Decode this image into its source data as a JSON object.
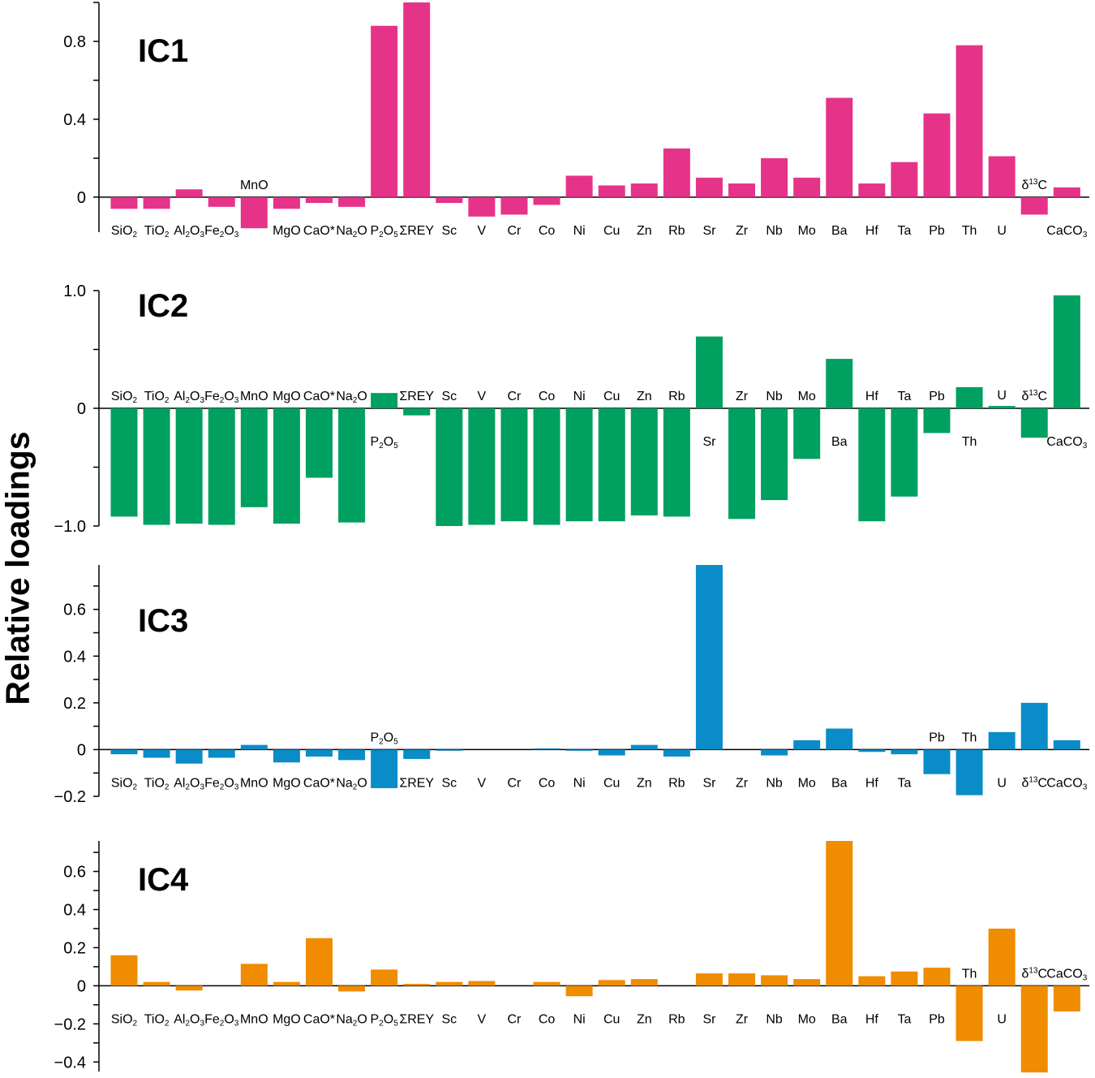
{
  "figure": {
    "ylabel": "Relative loadings"
  },
  "chart_data": [
    {
      "type": "bar",
      "title": "IC1",
      "color": "#e6338a",
      "categories": [
        "SiO2",
        "TiO2",
        "Al2O3",
        "Fe2O3",
        "MnO",
        "MgO",
        "CaO*",
        "Na2O",
        "P2O5",
        "ΣREY",
        "Sc",
        "V",
        "Cr",
        "Co",
        "Ni",
        "Cu",
        "Zn",
        "Rb",
        "Sr",
        "Zr",
        "Nb",
        "Mo",
        "Ba",
        "Hf",
        "Ta",
        "Pb",
        "Th",
        "U",
        "δ13C",
        "CaCO3"
      ],
      "values": [
        -0.06,
        -0.06,
        0.04,
        -0.05,
        -0.16,
        -0.06,
        -0.03,
        -0.05,
        0.88,
        1.0,
        -0.03,
        -0.1,
        -0.09,
        -0.04,
        0.11,
        0.06,
        0.07,
        0.25,
        0.1,
        0.07,
        0.2,
        0.1,
        0.51,
        0.07,
        0.18,
        0.43,
        0.78,
        0.21,
        -0.09,
        0.05
      ],
      "ylim": [
        -0.18,
        1.0
      ],
      "yticks": [
        "0",
        "0.4",
        "0.8"
      ],
      "label_positions": [
        "below",
        "below",
        "below",
        "below",
        "above",
        "below",
        "below",
        "below",
        "below",
        "below",
        "below",
        "below",
        "below",
        "below",
        "below",
        "below",
        "below",
        "below",
        "below",
        "below",
        "below",
        "below",
        "below",
        "below",
        "below",
        "below",
        "below",
        "below",
        "above",
        "below"
      ]
    },
    {
      "type": "bar",
      "title": "IC2",
      "color": "#00a060",
      "categories": [
        "SiO2",
        "TiO2",
        "Al2O3",
        "Fe2O3",
        "MnO",
        "MgO",
        "CaO*",
        "Na2O",
        "P2O5",
        "ΣREY",
        "Sc",
        "V",
        "Cr",
        "Co",
        "Ni",
        "Cu",
        "Zn",
        "Rb",
        "Sr",
        "Zr",
        "Nb",
        "Mo",
        "Ba",
        "Hf",
        "Ta",
        "Pb",
        "Th",
        "U",
        "δ13C",
        "CaCO3"
      ],
      "values": [
        -0.92,
        -0.99,
        -0.98,
        -0.99,
        -0.84,
        -0.98,
        -0.59,
        -0.97,
        0.13,
        -0.06,
        -1.0,
        -0.99,
        -0.96,
        -0.99,
        -0.96,
        -0.96,
        -0.91,
        -0.92,
        0.61,
        -0.94,
        -0.78,
        -0.43,
        0.42,
        -0.96,
        -0.75,
        -0.21,
        0.18,
        0.02,
        -0.25,
        0.96
      ],
      "ylim": [
        -1.0,
        1.0
      ],
      "yticks": [
        "−1.0",
        "0",
        "1.0"
      ],
      "label_positions": [
        "above",
        "above",
        "above",
        "above",
        "above",
        "above",
        "above",
        "above",
        "below",
        "above",
        "above",
        "above",
        "above",
        "above",
        "above",
        "above",
        "above",
        "above",
        "below",
        "above",
        "above",
        "above",
        "below",
        "above",
        "above",
        "above",
        "below",
        "above",
        "above",
        "below"
      ]
    },
    {
      "type": "bar",
      "title": "IC3",
      "color": "#0a8cc8",
      "categories": [
        "SiO2",
        "TiO2",
        "Al2O3",
        "Fe2O3",
        "MnO",
        "MgO",
        "CaO*",
        "Na2O",
        "P2O5",
        "ΣREY",
        "Sc",
        "V",
        "Cr",
        "Co",
        "Ni",
        "Cu",
        "Zn",
        "Rb",
        "Sr",
        "Zr",
        "Nb",
        "Mo",
        "Ba",
        "Hf",
        "Ta",
        "Pb",
        "Th",
        "U",
        "δ13C",
        "CaCO3"
      ],
      "values": [
        -0.02,
        -0.035,
        -0.06,
        -0.035,
        0.02,
        -0.055,
        -0.03,
        -0.045,
        -0.165,
        -0.04,
        -0.005,
        0,
        0,
        0.005,
        -0.005,
        -0.025,
        0.02,
        -0.03,
        0.79,
        0,
        -0.025,
        0.04,
        0.09,
        -0.01,
        -0.02,
        -0.105,
        -0.195,
        0.075,
        0.2,
        0.04
      ],
      "ylim": [
        -0.2,
        0.79
      ],
      "yticks": [
        "−0.2",
        "0",
        "0.2",
        "0.4",
        "0.6"
      ],
      "label_positions": [
        "below",
        "below",
        "below",
        "below",
        "below",
        "below",
        "below",
        "below",
        "above",
        "below",
        "below",
        "below",
        "below",
        "below",
        "below",
        "below",
        "below",
        "below",
        "below",
        "below",
        "below",
        "below",
        "below",
        "below",
        "below",
        "above",
        "above",
        "below",
        "below",
        "below"
      ]
    },
    {
      "type": "bar",
      "title": "IC4",
      "color": "#ef8c00",
      "categories": [
        "SiO2",
        "TiO2",
        "Al2O3",
        "Fe2O3",
        "MnO",
        "MgO",
        "CaO*",
        "Na2O",
        "P2O5",
        "ΣREY",
        "Sc",
        "V",
        "Cr",
        "Co",
        "Ni",
        "Cu",
        "Zn",
        "Rb",
        "Sr",
        "Zr",
        "Nb",
        "Mo",
        "Ba",
        "Hf",
        "Ta",
        "Pb",
        "Th",
        "U",
        "δ13C",
        "CaCO3"
      ],
      "values": [
        0.16,
        0.02,
        -0.025,
        0,
        0.115,
        0.02,
        0.25,
        -0.03,
        0.085,
        0.01,
        0.02,
        0.025,
        0,
        0.02,
        -0.055,
        0.03,
        0.035,
        0,
        0.065,
        0.065,
        0.055,
        0.035,
        0.76,
        0.05,
        0.075,
        0.095,
        -0.29,
        0.3,
        -0.455,
        -0.135
      ],
      "ylim": [
        -0.45,
        0.76
      ],
      "yticks": [
        "−0.4",
        "−0.2",
        "0",
        "0.2",
        "0.4",
        "0.6"
      ],
      "label_positions": [
        "below",
        "below",
        "below",
        "below",
        "below",
        "below",
        "below",
        "below",
        "below",
        "below",
        "below",
        "below",
        "below",
        "below",
        "below",
        "below",
        "below",
        "below",
        "below",
        "below",
        "below",
        "below",
        "below",
        "below",
        "below",
        "below",
        "above",
        "below",
        "above",
        "above"
      ]
    }
  ]
}
